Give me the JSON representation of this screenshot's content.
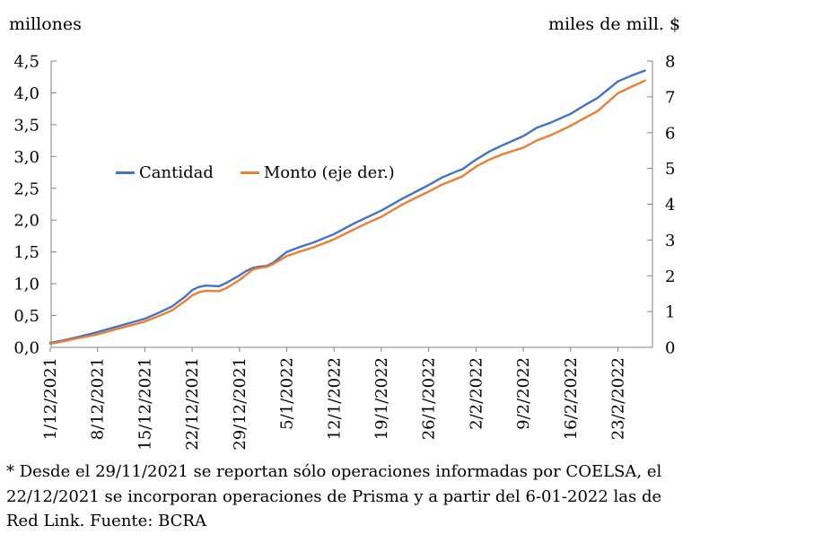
{
  "units": {
    "left": "millones",
    "right": "miles de mill. $"
  },
  "legend": {
    "items": [
      {
        "label": "Cantidad",
        "color": "#4472C4"
      },
      {
        "label": "Monto (eje der.)",
        "color": "#ED7D31"
      }
    ]
  },
  "footnote": {
    "line1": "* Desde el 29/11/2021 se reportan sólo operaciones informadas por COELSA, el",
    "line2": "22/12/2021 se incorporan operaciones de Prisma y a partir del 6-01-2022 las de",
    "line3": "Red Link. Fuente: BCRA"
  },
  "chart_data": {
    "type": "line",
    "title": "",
    "grid": false,
    "legend_position": "inside-upper-left",
    "axis_color": "#808080",
    "left_axis": {
      "label": "millones",
      "min": 0,
      "max": 4.5,
      "step": 0.5,
      "tick_labels": [
        "4,5",
        "4,0",
        "3,5",
        "3,0",
        "2,5",
        "2,0",
        "1,5",
        "1,0",
        "0,5",
        "0,0"
      ]
    },
    "right_axis": {
      "label": "miles de mill. $",
      "min": 0,
      "max": 8,
      "step": 1,
      "tick_labels": [
        "8",
        "7",
        "6",
        "5",
        "4",
        "3",
        "2",
        "1",
        "0"
      ]
    },
    "x_axis": {
      "tick_labels": [
        "1/12/2021",
        "8/12/2021",
        "15/12/2021",
        "22/12/2021",
        "29/12/2021",
        "5/1/2022",
        "12/1/2022",
        "19/1/2022",
        "26/1/2022",
        "2/2/2022",
        "9/2/2022",
        "16/2/2022",
        "23/2/2022"
      ],
      "days_per_tick": 7,
      "total_days": 88,
      "label_rotation_deg": -90
    },
    "series": [
      {
        "name": "Cantidad",
        "axis": "left",
        "color": "#4472C4",
        "points": [
          [
            0,
            0.07
          ],
          [
            2,
            0.11
          ],
          [
            4,
            0.16
          ],
          [
            7,
            0.24
          ],
          [
            10,
            0.33
          ],
          [
            12,
            0.39
          ],
          [
            14,
            0.45
          ],
          [
            16,
            0.54
          ],
          [
            18,
            0.64
          ],
          [
            20,
            0.8
          ],
          [
            21,
            0.9
          ],
          [
            22,
            0.95
          ],
          [
            23,
            0.97
          ],
          [
            24,
            0.965
          ],
          [
            25,
            0.96
          ],
          [
            26,
            1.01
          ],
          [
            28,
            1.13
          ],
          [
            29,
            1.2
          ],
          [
            30,
            1.25
          ],
          [
            31,
            1.27
          ],
          [
            32,
            1.28
          ],
          [
            33,
            1.33
          ],
          [
            35,
            1.5
          ],
          [
            37,
            1.58
          ],
          [
            39,
            1.65
          ],
          [
            42,
            1.78
          ],
          [
            45,
            1.95
          ],
          [
            47,
            2.05
          ],
          [
            49,
            2.15
          ],
          [
            52,
            2.33
          ],
          [
            54,
            2.44
          ],
          [
            56,
            2.55
          ],
          [
            58,
            2.67
          ],
          [
            60,
            2.76
          ],
          [
            61,
            2.8
          ],
          [
            63,
            2.95
          ],
          [
            65,
            3.08
          ],
          [
            67,
            3.18
          ],
          [
            70,
            3.32
          ],
          [
            72,
            3.45
          ],
          [
            74,
            3.53
          ],
          [
            77,
            3.67
          ],
          [
            79,
            3.8
          ],
          [
            81,
            3.92
          ],
          [
            84,
            4.18
          ],
          [
            86,
            4.27
          ],
          [
            88,
            4.35
          ]
        ]
      },
      {
        "name": "Monto (eje der.)",
        "axis": "right",
        "color": "#ED7D31",
        "points": [
          [
            0,
            0.1
          ],
          [
            2,
            0.17
          ],
          [
            4,
            0.25
          ],
          [
            7,
            0.36
          ],
          [
            10,
            0.52
          ],
          [
            12,
            0.62
          ],
          [
            14,
            0.72
          ],
          [
            16,
            0.87
          ],
          [
            18,
            1.03
          ],
          [
            20,
            1.3
          ],
          [
            21,
            1.45
          ],
          [
            22,
            1.54
          ],
          [
            23,
            1.58
          ],
          [
            24,
            1.575
          ],
          [
            25,
            1.57
          ],
          [
            26,
            1.65
          ],
          [
            28,
            1.88
          ],
          [
            29,
            2.03
          ],
          [
            30,
            2.18
          ],
          [
            31,
            2.22
          ],
          [
            32,
            2.25
          ],
          [
            33,
            2.33
          ],
          [
            35,
            2.55
          ],
          [
            37,
            2.68
          ],
          [
            39,
            2.8
          ],
          [
            42,
            3.02
          ],
          [
            45,
            3.3
          ],
          [
            47,
            3.48
          ],
          [
            49,
            3.65
          ],
          [
            52,
            3.98
          ],
          [
            54,
            4.17
          ],
          [
            56,
            4.35
          ],
          [
            58,
            4.55
          ],
          [
            60,
            4.7
          ],
          [
            61,
            4.78
          ],
          [
            63,
            5.05
          ],
          [
            65,
            5.25
          ],
          [
            67,
            5.4
          ],
          [
            70,
            5.58
          ],
          [
            72,
            5.78
          ],
          [
            74,
            5.92
          ],
          [
            77,
            6.19
          ],
          [
            79,
            6.4
          ],
          [
            81,
            6.6
          ],
          [
            84,
            7.1
          ],
          [
            86,
            7.28
          ],
          [
            88,
            7.45
          ]
        ]
      }
    ]
  }
}
